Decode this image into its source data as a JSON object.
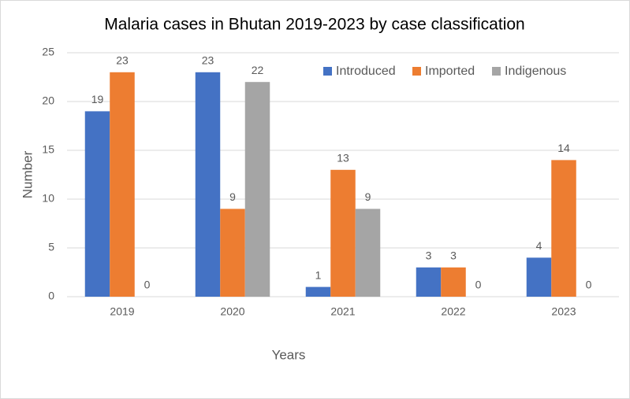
{
  "chart_data": {
    "type": "bar",
    "title": "Malaria cases in Bhutan 2019-2023 by case classification",
    "x_label": "Years",
    "y_label": "Number",
    "categories": [
      "2019",
      "2020",
      "2021",
      "2022",
      "2023"
    ],
    "series": [
      {
        "name": "Introduced",
        "color": "#4472c4",
        "values": [
          19,
          23,
          1,
          3,
          4
        ]
      },
      {
        "name": "Imported",
        "color": "#ed7d31",
        "values": [
          23,
          9,
          13,
          3,
          14
        ]
      },
      {
        "name": "Indigenous",
        "color": "#a5a5a5",
        "values": [
          0,
          22,
          9,
          0,
          0
        ]
      }
    ],
    "ylim": [
      0,
      25
    ],
    "yticks": [
      0,
      5,
      10,
      15,
      20,
      25
    ],
    "grid": true,
    "legend": "top-right"
  }
}
